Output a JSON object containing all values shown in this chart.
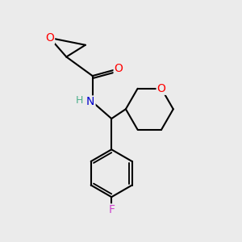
{
  "bg_color": "#ebebeb",
  "bond_color": "#000000",
  "bond_width": 1.5,
  "atom_colors": {
    "O": "#ff0000",
    "N": "#0000cc",
    "H": "#4caf8a",
    "F": "#cc44cc",
    "C": "#000000"
  },
  "font_size_atoms": 10,
  "font_size_H": 9
}
